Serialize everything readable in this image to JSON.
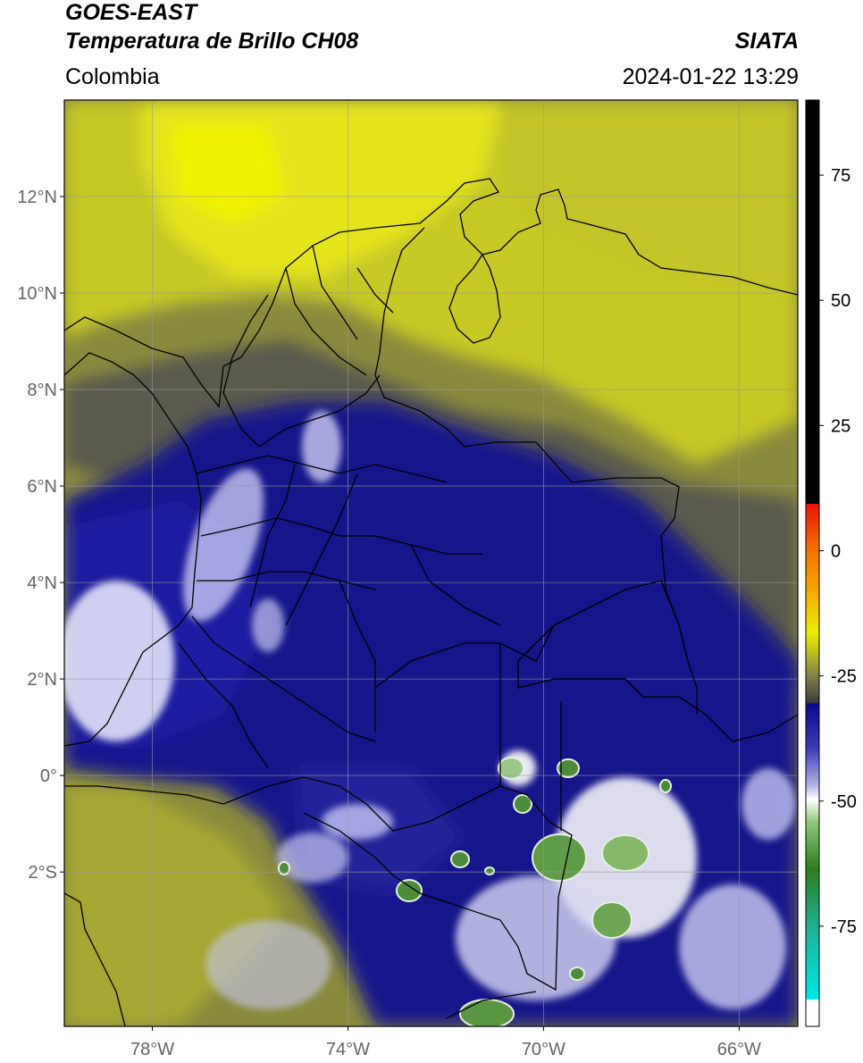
{
  "header": {
    "satellite": "GOES-EAST",
    "product": "Temperatura de Brillo CH08",
    "agency": "SIATA",
    "region": "Colombia",
    "datetime": "2024-01-22 13:29"
  },
  "map": {
    "lon_range": [
      -79.8,
      -64.8
    ],
    "lat_range": [
      -5.2,
      14.0
    ],
    "lat_ticks": [
      {
        "value": 12,
        "label": "12°N"
      },
      {
        "value": 10,
        "label": "10°N"
      },
      {
        "value": 8,
        "label": "8°N"
      },
      {
        "value": 6,
        "label": "6°N"
      },
      {
        "value": 4,
        "label": "4°N"
      },
      {
        "value": 2,
        "label": "2°N"
      },
      {
        "value": 0,
        "label": "0°"
      },
      {
        "value": -2,
        "label": "2°S"
      }
    ],
    "lon_ticks": [
      {
        "value": -78,
        "label": "78°W"
      },
      {
        "value": -74,
        "label": "74°W"
      },
      {
        "value": -70,
        "label": "70°W"
      },
      {
        "value": -66,
        "label": "66°W"
      }
    ],
    "gridlines": true
  },
  "colorbar": {
    "range": [
      -95,
      90
    ],
    "ticks": [
      {
        "value": 75,
        "label": "75"
      },
      {
        "value": 50,
        "label": "50"
      },
      {
        "value": 25,
        "label": "25"
      },
      {
        "value": 0,
        "label": "0"
      },
      {
        "value": -25,
        "label": "-25"
      },
      {
        "value": -50,
        "label": "-50"
      },
      {
        "value": -75,
        "label": "-75"
      }
    ],
    "colors": {
      "black": "#000000",
      "red": "#e8120a",
      "orange": "#f08c00",
      "yellow": "#eded00",
      "olive": "#8c8c3c",
      "gray": "#4a4a4a",
      "navy": "#0a0a8c",
      "white": "#ffffff",
      "green": "#2e7d1e",
      "teal": "#20b4a0",
      "cyan": "#00e6e6"
    }
  }
}
